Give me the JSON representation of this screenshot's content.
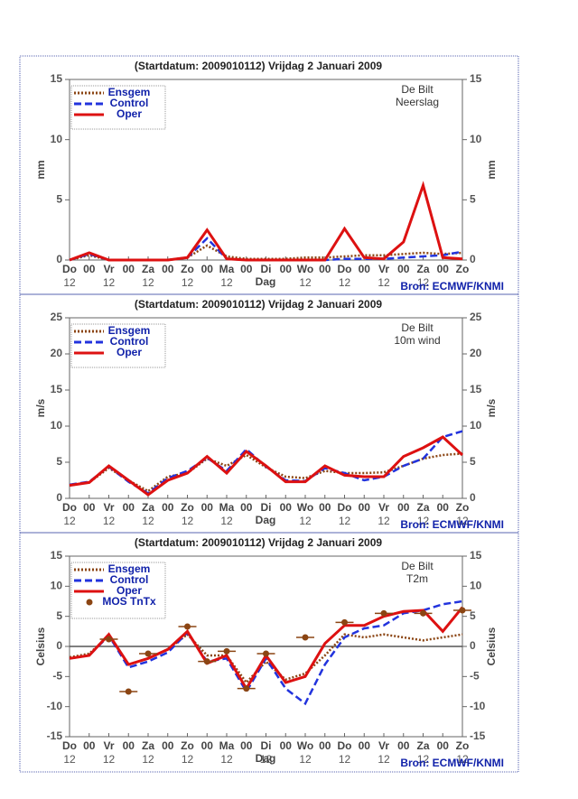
{
  "chart_data": [
    {
      "type": "line",
      "title": "(Startdatum: 2009010112)   Vrijdag    2 Januari   2009",
      "station": "De Bilt",
      "variable": "Neerslag",
      "y_label": "mm",
      "x_label": "Dag",
      "source": "Bron: ECMWF/KNMI",
      "categories": [
        "Do",
        "00",
        "Vr",
        "00",
        "Za",
        "00",
        "Zo",
        "00",
        "Ma",
        "00",
        "Di",
        "00",
        "Wo",
        "00",
        "Do",
        "00",
        "Vr",
        "00",
        "Za",
        "00",
        "Zo"
      ],
      "sublabels": [
        "12",
        null,
        "12",
        null,
        "12",
        null,
        "12",
        null,
        "12",
        null,
        null,
        null,
        "12",
        null,
        "12",
        null,
        "12",
        null,
        "12",
        null,
        null
      ],
      "ylim": [
        0,
        15
      ],
      "yticks": [
        0,
        5,
        10,
        15
      ],
      "series": [
        {
          "name": "Ensgem",
          "color": "#8b4513",
          "style": "dotted",
          "values": [
            0,
            0.4,
            0,
            0,
            0,
            0,
            0.2,
            1.2,
            0.3,
            0.1,
            0.1,
            0.1,
            0.2,
            0.2,
            0.3,
            0.4,
            0.4,
            0.5,
            0.6,
            0.5,
            0.6
          ]
        },
        {
          "name": "Control",
          "color": "#2233dd",
          "style": "dashed",
          "values": [
            0,
            0.5,
            0,
            0,
            0,
            0,
            0.2,
            1.8,
            0.1,
            0,
            0,
            0,
            0,
            0,
            0.1,
            0.1,
            0.1,
            0.2,
            0.3,
            0.4,
            0.7
          ]
        },
        {
          "name": "Oper",
          "color": "#dd1111",
          "style": "solid",
          "values": [
            0,
            0.6,
            0,
            0,
            0,
            0,
            0.2,
            2.5,
            0.1,
            0,
            0,
            0,
            0,
            0,
            2.6,
            0.2,
            0.1,
            1.5,
            6.2,
            0.2,
            0.1
          ]
        }
      ]
    },
    {
      "type": "line",
      "title": "(Startdatum: 2009010112)   Vrijdag    2 Januari   2009",
      "station": "De Bilt",
      "variable": "10m wind",
      "y_label": "m/s",
      "x_label": "Dag",
      "source": "Bron: ECMWF/KNMI",
      "categories": [
        "Do",
        "00",
        "Vr",
        "00",
        "Za",
        "00",
        "Zo",
        "00",
        "Ma",
        "00",
        "Di",
        "00",
        "Wo",
        "00",
        "Do",
        "00",
        "Vr",
        "00",
        "Za",
        "00",
        "Zo"
      ],
      "sublabels": [
        "12",
        null,
        "12",
        null,
        "12",
        null,
        "12",
        null,
        "12",
        null,
        null,
        null,
        "12",
        null,
        "12",
        null,
        "12",
        null,
        "12",
        null,
        "12"
      ],
      "ylim": [
        0,
        25
      ],
      "yticks": [
        0,
        5,
        10,
        15,
        20,
        25
      ],
      "series": [
        {
          "name": "Ensgem",
          "color": "#8b4513",
          "style": "dotted",
          "values": [
            1.8,
            2.2,
            4.2,
            2.5,
            1,
            3,
            3.5,
            5.5,
            4.5,
            6,
            4.3,
            3,
            2.8,
            3.8,
            3.5,
            3.5,
            3.6,
            4.5,
            5.5,
            6,
            6.2
          ]
        },
        {
          "name": "Control",
          "color": "#2233dd",
          "style": "dashed",
          "values": [
            1.9,
            2.3,
            4.4,
            2.3,
            0.7,
            2.8,
            3.8,
            5.6,
            3.8,
            6.8,
            4.4,
            2.5,
            2.4,
            4.2,
            3.5,
            2.5,
            3,
            4.5,
            5.5,
            8.5,
            9.3
          ]
        },
        {
          "name": "Oper",
          "color": "#dd1111",
          "style": "solid",
          "values": [
            1.8,
            2.2,
            4.5,
            2.5,
            0.5,
            2.5,
            3.5,
            5.8,
            3.5,
            6.5,
            4.5,
            2.3,
            2.3,
            4.5,
            3.2,
            3,
            3,
            5.8,
            7,
            8.5,
            6
          ]
        }
      ]
    },
    {
      "type": "line",
      "title": "(Startdatum: 2009010112)   Vrijdag    2 Januari   2009",
      "station": "De Bilt",
      "variable": "T2m",
      "y_label": "Celsius",
      "x_label": "Dag",
      "source": "Bron: ECMWF/KNMI",
      "categories": [
        "Do",
        "00",
        "Vr",
        "00",
        "Za",
        "00",
        "Zo",
        "00",
        "Ma",
        "00",
        "Di",
        "00",
        "Wo",
        "00",
        "Do",
        "00",
        "Vr",
        "00",
        "Za",
        "00",
        "Zo"
      ],
      "sublabels": [
        "12",
        null,
        "12",
        null,
        "12",
        null,
        "12",
        null,
        "12",
        null,
        "12",
        null,
        "12",
        null,
        "12",
        null,
        "12",
        null,
        "12",
        null,
        "12"
      ],
      "ylim": [
        -15,
        15
      ],
      "yticks": [
        -15,
        -10,
        -5,
        0,
        5,
        10,
        15
      ],
      "zero_line": true,
      "series": [
        {
          "name": "Ensgem",
          "color": "#8b4513",
          "style": "dotted",
          "values": [
            -1.8,
            -1.2,
            1.8,
            -3,
            -2,
            -0.5,
            2,
            -1.5,
            -1.5,
            -6,
            -2.5,
            -5.5,
            -4.5,
            -1.5,
            2,
            1.5,
            2,
            1.5,
            1,
            1.5,
            2
          ]
        },
        {
          "name": "Control",
          "color": "#2233dd",
          "style": "dashed",
          "values": [
            -2,
            -1.5,
            1.8,
            -3.5,
            -2.5,
            -1,
            2.3,
            -2.5,
            -2,
            -7.5,
            -2,
            -7,
            -9.5,
            -3,
            1.5,
            3,
            3.5,
            5.5,
            6,
            7,
            7.5
          ]
        },
        {
          "name": "Oper",
          "color": "#dd1111",
          "style": "solid",
          "values": [
            -2,
            -1.5,
            2,
            -3,
            -2,
            -0.5,
            2.5,
            -2.8,
            -1.5,
            -7,
            -1.5,
            -6,
            -5,
            0.5,
            3.5,
            3.5,
            5,
            5.8,
            6,
            2.5,
            6.5
          ]
        },
        {
          "name": "MOS TnTx",
          "color": "#8b4513",
          "style": "marker",
          "values": [
            null,
            null,
            1.2,
            -7.5,
            -1.2,
            null,
            3.3,
            -2.5,
            -0.8,
            -7,
            -1.2,
            null,
            1.5,
            null,
            4,
            null,
            5.5,
            null,
            5.5,
            null,
            6
          ]
        }
      ]
    }
  ]
}
